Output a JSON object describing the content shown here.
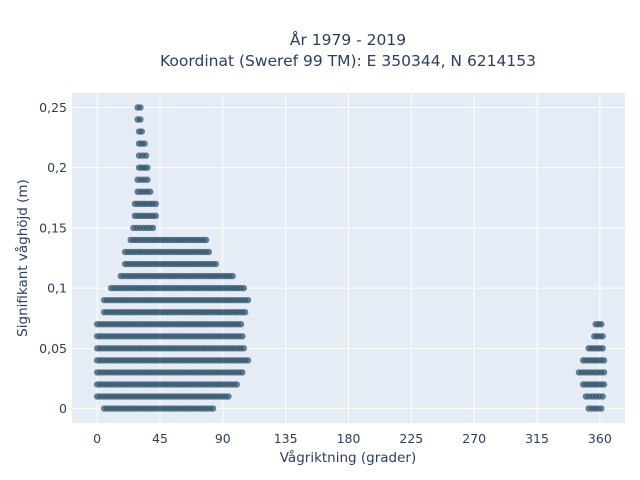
{
  "chart_data": {
    "type": "scatter",
    "title_line1": "År 1979 - 2019",
    "title_line2": "Koordinat (Sweref 99 TM): E 350344, N 6214153",
    "xlabel": "Vågriktning (grader)",
    "ylabel": "Signifikant våghöjd (m)",
    "xlim": [
      -18,
      378
    ],
    "ylim": [
      -0.012,
      0.262
    ],
    "xticks": [
      0,
      45,
      90,
      135,
      180,
      225,
      270,
      315,
      360
    ],
    "xtick_labels": [
      "0",
      "45",
      "90",
      "135",
      "180",
      "225",
      "270",
      "315",
      "360"
    ],
    "yticks": [
      0,
      0.05,
      0.1,
      0.15,
      0.2,
      0.25
    ],
    "ytick_labels": [
      "0",
      "0,05",
      "0,1",
      "0,15",
      "0,2",
      "0,25"
    ],
    "grid": true,
    "marker_color": "#34556e",
    "background_color": "#e5ecf6",
    "clusters": [
      {
        "y": 0.0,
        "xmin": 5,
        "xmax": 83
      },
      {
        "y": 0.01,
        "xmin": 0,
        "xmax": 94
      },
      {
        "y": 0.02,
        "xmin": 0,
        "xmax": 100
      },
      {
        "y": 0.03,
        "xmin": 0,
        "xmax": 104
      },
      {
        "y": 0.04,
        "xmin": 0,
        "xmax": 108
      },
      {
        "y": 0.05,
        "xmin": 0,
        "xmax": 105
      },
      {
        "y": 0.06,
        "xmin": 0,
        "xmax": 104
      },
      {
        "y": 0.07,
        "xmin": 0,
        "xmax": 103
      },
      {
        "y": 0.08,
        "xmin": 5,
        "xmax": 106
      },
      {
        "y": 0.09,
        "xmin": 5,
        "xmax": 108
      },
      {
        "y": 0.1,
        "xmin": 10,
        "xmax": 105
      },
      {
        "y": 0.11,
        "xmin": 17,
        "xmax": 97
      },
      {
        "y": 0.12,
        "xmin": 20,
        "xmax": 85
      },
      {
        "y": 0.13,
        "xmin": 20,
        "xmax": 80
      },
      {
        "y": 0.14,
        "xmin": 24,
        "xmax": 78
      },
      {
        "y": 0.15,
        "xmin": 26,
        "xmax": 40
      },
      {
        "y": 0.16,
        "xmin": 27,
        "xmax": 42
      },
      {
        "y": 0.17,
        "xmin": 27,
        "xmax": 42
      },
      {
        "y": 0.18,
        "xmin": 29,
        "xmax": 38
      },
      {
        "y": 0.19,
        "xmin": 29,
        "xmax": 36
      },
      {
        "y": 0.2,
        "xmin": 30,
        "xmax": 36
      },
      {
        "y": 0.21,
        "xmin": 30,
        "xmax": 35
      },
      {
        "y": 0.22,
        "xmin": 30,
        "xmax": 34
      },
      {
        "y": 0.23,
        "xmin": 30,
        "xmax": 32
      },
      {
        "y": 0.24,
        "xmin": 29,
        "xmax": 31
      },
      {
        "y": 0.25,
        "xmin": 29,
        "xmax": 31
      },
      {
        "y": 0.0,
        "xmin": 352,
        "xmax": 361
      },
      {
        "y": 0.01,
        "xmin": 350,
        "xmax": 362
      },
      {
        "y": 0.02,
        "xmin": 348,
        "xmax": 363
      },
      {
        "y": 0.03,
        "xmin": 345,
        "xmax": 363
      },
      {
        "y": 0.04,
        "xmin": 348,
        "xmax": 363
      },
      {
        "y": 0.05,
        "xmin": 352,
        "xmax": 362
      },
      {
        "y": 0.06,
        "xmin": 356,
        "xmax": 362
      },
      {
        "y": 0.07,
        "xmin": 357,
        "xmax": 361
      }
    ]
  }
}
